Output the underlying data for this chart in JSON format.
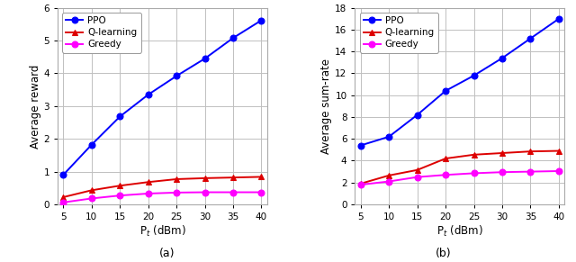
{
  "x": [
    5,
    10,
    15,
    20,
    25,
    30,
    35,
    40
  ],
  "plot_a": {
    "PPO": [
      0.9,
      1.82,
      2.68,
      3.35,
      3.92,
      4.45,
      5.08,
      5.62
    ],
    "Q-learning": [
      0.22,
      0.43,
      0.57,
      0.68,
      0.77,
      0.8,
      0.82,
      0.84
    ],
    "Greedy": [
      0.06,
      0.18,
      0.27,
      0.33,
      0.36,
      0.37,
      0.37,
      0.37
    ]
  },
  "plot_b": {
    "PPO": [
      5.4,
      6.2,
      8.2,
      10.4,
      11.8,
      13.4,
      15.2,
      17.0
    ],
    "Q-learning": [
      1.9,
      2.65,
      3.15,
      4.2,
      4.55,
      4.7,
      4.85,
      4.9
    ],
    "Greedy": [
      1.8,
      2.1,
      2.5,
      2.7,
      2.85,
      2.95,
      3.0,
      3.05
    ]
  },
  "colors": {
    "PPO": "#0000ff",
    "Q-learning": "#dd0000",
    "Greedy": "#ff00ff"
  },
  "markers": {
    "PPO": "o",
    "Q-learning": "^",
    "Greedy": "o"
  },
  "markerfilled": {
    "PPO": true,
    "Q-learning": true,
    "Greedy": true
  },
  "ylabel_a": "Average reward",
  "ylabel_b": "Average sum-rate",
  "xlabel": "P$_t$ (dBm)",
  "sub_a": "(a)",
  "sub_b": "(b)",
  "ylim_a": [
    0,
    6
  ],
  "yticks_a": [
    0,
    1,
    2,
    3,
    4,
    5,
    6
  ],
  "ylim_b": [
    0,
    18
  ],
  "yticks_b": [
    0,
    2,
    4,
    6,
    8,
    10,
    12,
    14,
    16,
    18
  ],
  "xticks": [
    5,
    10,
    15,
    20,
    25,
    30,
    35,
    40
  ],
  "legend_order": [
    "PPO",
    "Q-learning",
    "Greedy"
  ],
  "plot_bg": "#ffffff",
  "grid_color": "#c0c0c0",
  "fig_bg": "#ffffff"
}
